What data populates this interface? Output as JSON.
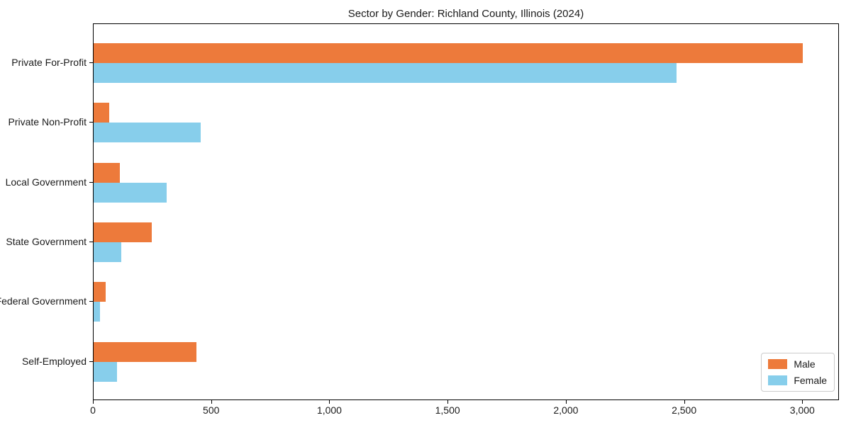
{
  "chart_data": {
    "type": "bar",
    "orientation": "horizontal",
    "title": "Sector by Gender: Richland County, Illinois (2024)",
    "categories": [
      "Private For-Profit",
      "Private Non-Profit",
      "Local Government",
      "State Government",
      "Federal Government",
      "Self-Employed"
    ],
    "series": [
      {
        "name": "Male",
        "color": "#ed7a3b",
        "values": [
          3005,
          65,
          110,
          245,
          50,
          435
        ]
      },
      {
        "name": "Female",
        "color": "#87ceeb",
        "values": [
          2470,
          455,
          310,
          118,
          27,
          100
        ]
      }
    ],
    "xlabel": "",
    "ylabel": "",
    "xlim": [
      0,
      3155
    ],
    "x_ticks": [
      {
        "value": 0,
        "label": "0"
      },
      {
        "value": 500,
        "label": "500"
      },
      {
        "value": 1000,
        "label": "1,000"
      },
      {
        "value": 1500,
        "label": "1,500"
      },
      {
        "value": 2000,
        "label": "2,000"
      },
      {
        "value": 2500,
        "label": "2,500"
      },
      {
        "value": 3000,
        "label": "3,000"
      }
    ],
    "grid": false,
    "legend_position": "lower right"
  }
}
